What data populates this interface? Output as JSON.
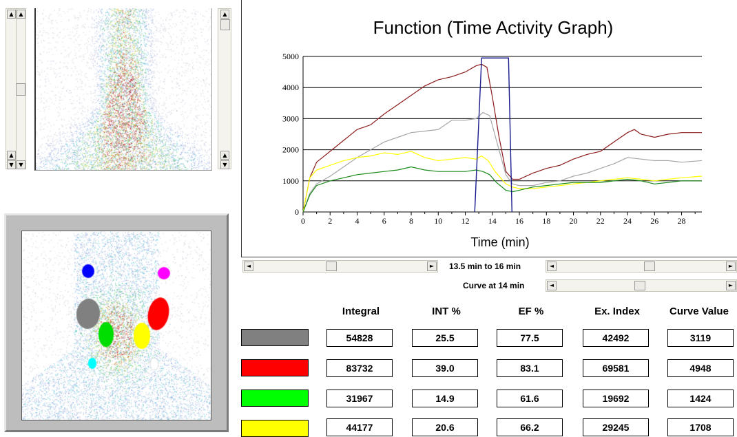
{
  "chart_data": {
    "type": "line",
    "title": "Function  (Time Activity Graph)",
    "xlabel": "Time  (min)",
    "ylabel": "",
    "xlim": [
      0,
      29.5
    ],
    "ylim": [
      0,
      5000
    ],
    "xticks": [
      0,
      2,
      4,
      6,
      8,
      10,
      12,
      14,
      16,
      18,
      20,
      22,
      24,
      26,
      28
    ],
    "yticks": [
      0,
      1000,
      2000,
      3000,
      4000,
      5000
    ],
    "grid": "horizontal",
    "selection_window": [
      12.8,
      15.3
    ],
    "series": [
      {
        "color": "#8b1a1a",
        "x": [
          0,
          0.5,
          1,
          2,
          3,
          4,
          5,
          6,
          7,
          8,
          9,
          10,
          11,
          12,
          12.8,
          13.2,
          13.6,
          14,
          14.5,
          15,
          15.5,
          16,
          17,
          18,
          19,
          20,
          21,
          22,
          23,
          24,
          24.5,
          25,
          26,
          27,
          28,
          29.5
        ],
        "y": [
          0,
          1100,
          1600,
          1950,
          2300,
          2650,
          2800,
          3150,
          3450,
          3750,
          4050,
          4250,
          4350,
          4500,
          4700,
          4750,
          4650,
          3700,
          2400,
          1300,
          1050,
          1050,
          1250,
          1400,
          1500,
          1700,
          1850,
          1950,
          2250,
          2550,
          2650,
          2500,
          2400,
          2500,
          2550,
          2550
        ]
      },
      {
        "color": "#a6a6a6",
        "x": [
          0,
          0.5,
          1,
          2,
          3,
          4,
          5,
          6,
          7,
          8,
          9,
          10,
          11,
          12,
          12.8,
          13.3,
          13.8,
          14.3,
          15,
          15.5,
          16,
          17,
          18,
          19,
          20,
          21,
          22,
          23,
          24,
          25,
          26,
          27,
          28,
          29.5
        ],
        "y": [
          0,
          600,
          900,
          1150,
          1450,
          1750,
          2000,
          2250,
          2400,
          2550,
          2600,
          2650,
          2950,
          2950,
          3000,
          3200,
          3100,
          2300,
          1200,
          900,
          850,
          850,
          950,
          1000,
          1150,
          1250,
          1400,
          1550,
          1750,
          1700,
          1650,
          1650,
          1600,
          1650
        ]
      },
      {
        "color": "#ffff00",
        "x": [
          0,
          0.5,
          1,
          2,
          3,
          4,
          5,
          6,
          7,
          8,
          9,
          10,
          11,
          12,
          12.8,
          13.2,
          13.7,
          14.2,
          15,
          15.5,
          16,
          17,
          18,
          19,
          20,
          21,
          22,
          23,
          24,
          25,
          26,
          27,
          28,
          29.5
        ],
        "y": [
          0,
          1100,
          1350,
          1500,
          1650,
          1750,
          1800,
          1900,
          1850,
          1950,
          1750,
          1650,
          1700,
          1750,
          1700,
          1800,
          1650,
          1300,
          900,
          800,
          750,
          750,
          800,
          850,
          900,
          950,
          1000,
          1050,
          1100,
          1050,
          1000,
          1050,
          1100,
          1150
        ]
      },
      {
        "color": "#1a8a1a",
        "x": [
          0,
          0.5,
          1,
          2,
          3,
          4,
          5,
          6,
          7,
          8,
          9,
          10,
          11,
          12,
          12.8,
          13.3,
          13.8,
          14.3,
          15,
          15.5,
          16,
          17,
          18,
          19,
          20,
          21,
          22,
          23,
          24,
          25,
          26,
          27,
          28,
          29.5
        ],
        "y": [
          0,
          550,
          850,
          1000,
          1100,
          1200,
          1250,
          1300,
          1350,
          1450,
          1350,
          1300,
          1300,
          1300,
          1350,
          1300,
          1200,
          950,
          700,
          650,
          700,
          800,
          850,
          900,
          950,
          950,
          950,
          1000,
          1050,
          1000,
          900,
          950,
          1000,
          1000
        ]
      }
    ]
  },
  "controls": {
    "range_label": "13.5 min to  16 min",
    "curve_label": "Curve at  14 min",
    "arrow_left": "◄",
    "arrow_right": "►",
    "arrow_up": "▲",
    "arrow_down": "▼"
  },
  "table": {
    "columns": [
      "Integral",
      "INT %",
      "EF %",
      "Ex. Index",
      "Curve Value"
    ],
    "rows": [
      {
        "color": "#808080",
        "values": [
          "54828",
          "25.5",
          "77.5",
          "42492",
          "3119"
        ]
      },
      {
        "color": "#ff0000",
        "values": [
          "83732",
          "39.0",
          "83.1",
          "69581",
          "4948"
        ]
      },
      {
        "color": "#00ff00",
        "values": [
          "31967",
          "14.9",
          "61.6",
          "19692",
          "1424"
        ]
      },
      {
        "color": "#ffff00",
        "values": [
          "44177",
          "20.6",
          "66.2",
          "29245",
          "1708"
        ]
      }
    ]
  },
  "roi_colors": {
    "blue": "#0000ff",
    "magenta": "#ff00ff",
    "gray": "#808080",
    "red": "#ff0000",
    "green": "#00dd00",
    "yellow": "#ffff00",
    "cyan": "#00ffff",
    "white": "#ffffff"
  }
}
